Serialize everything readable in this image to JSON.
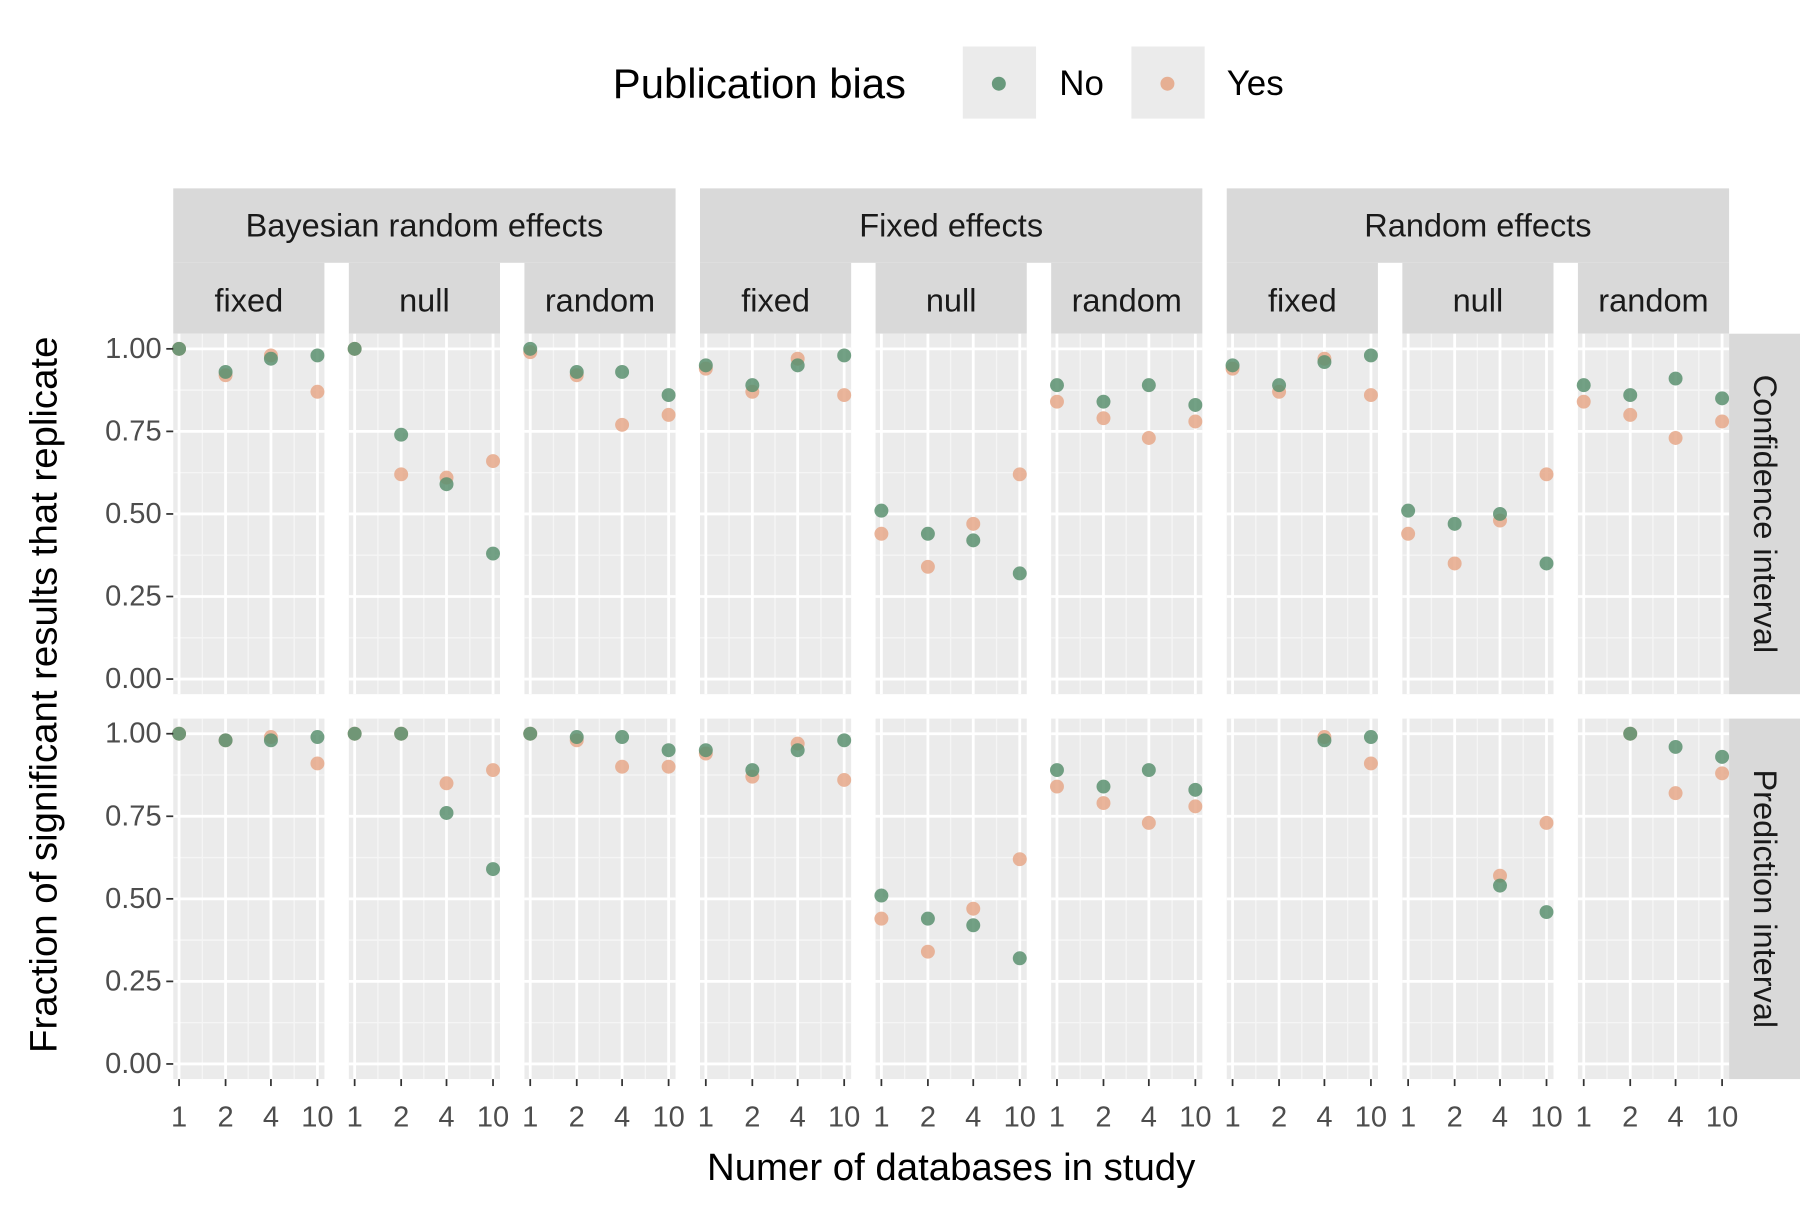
{
  "chart_data": {
    "type": "scatter",
    "xlabel": "Numer of databases in study",
    "ylabel": "Fraction of significant results that replicate",
    "x_categories": [
      "1",
      "2",
      "4",
      "10"
    ],
    "y_ticks": [
      "0.00",
      "0.25",
      "0.50",
      "0.75",
      "1.00"
    ],
    "ylim": [
      0,
      1
    ],
    "grid": true,
    "legend": {
      "title": "Publication bias",
      "placement": "top",
      "entries": [
        {
          "label": "No",
          "color": "#5a9070"
        },
        {
          "label": "Yes",
          "color": "#e6a88a"
        }
      ]
    },
    "column_groups": [
      "Bayesian random effects",
      "Fixed effects",
      "Random effects"
    ],
    "column_subgroups": [
      "fixed",
      "null",
      "random"
    ],
    "row_strips": [
      "Confidence interval",
      "Prediction interval"
    ],
    "panels": [
      {
        "row": 0,
        "group": 0,
        "sub": 0,
        "no": [
          1.0,
          0.93,
          0.97,
          0.98
        ],
        "yes": [
          1.0,
          0.92,
          0.98,
          0.87
        ]
      },
      {
        "row": 0,
        "group": 0,
        "sub": 1,
        "no": [
          1.0,
          0.74,
          0.59,
          0.38
        ],
        "yes": [
          1.0,
          0.62,
          0.61,
          0.66
        ]
      },
      {
        "row": 0,
        "group": 0,
        "sub": 2,
        "no": [
          1.0,
          0.93,
          0.93,
          0.86
        ],
        "yes": [
          0.99,
          0.92,
          0.77,
          0.8
        ]
      },
      {
        "row": 0,
        "group": 1,
        "sub": 0,
        "no": [
          0.95,
          0.89,
          0.95,
          0.98
        ],
        "yes": [
          0.94,
          0.87,
          0.97,
          0.86
        ]
      },
      {
        "row": 0,
        "group": 1,
        "sub": 1,
        "no": [
          0.51,
          0.44,
          0.42,
          0.32
        ],
        "yes": [
          0.44,
          0.34,
          0.47,
          0.62
        ]
      },
      {
        "row": 0,
        "group": 1,
        "sub": 2,
        "no": [
          0.89,
          0.84,
          0.89,
          0.83
        ],
        "yes": [
          0.84,
          0.79,
          0.73,
          0.78
        ]
      },
      {
        "row": 0,
        "group": 2,
        "sub": 0,
        "no": [
          0.95,
          0.89,
          0.96,
          0.98
        ],
        "yes": [
          0.94,
          0.87,
          0.97,
          0.86
        ]
      },
      {
        "row": 0,
        "group": 2,
        "sub": 1,
        "no": [
          0.51,
          0.47,
          0.5,
          0.35
        ],
        "yes": [
          0.44,
          0.35,
          0.48,
          0.62
        ]
      },
      {
        "row": 0,
        "group": 2,
        "sub": 2,
        "no": [
          0.89,
          0.86,
          0.91,
          0.85
        ],
        "yes": [
          0.84,
          0.8,
          0.73,
          0.78
        ]
      },
      {
        "row": 1,
        "group": 0,
        "sub": 0,
        "no": [
          1.0,
          0.98,
          0.98,
          0.99
        ],
        "yes": [
          1.0,
          0.98,
          0.99,
          0.91
        ]
      },
      {
        "row": 1,
        "group": 0,
        "sub": 1,
        "no": [
          1.0,
          1.0,
          0.76,
          0.59
        ],
        "yes": [
          1.0,
          1.0,
          0.85,
          0.89
        ]
      },
      {
        "row": 1,
        "group": 0,
        "sub": 2,
        "no": [
          1.0,
          0.99,
          0.99,
          0.95
        ],
        "yes": [
          1.0,
          0.98,
          0.9,
          0.9
        ]
      },
      {
        "row": 1,
        "group": 1,
        "sub": 0,
        "no": [
          0.95,
          0.89,
          0.95,
          0.98
        ],
        "yes": [
          0.94,
          0.87,
          0.97,
          0.86
        ]
      },
      {
        "row": 1,
        "group": 1,
        "sub": 1,
        "no": [
          0.51,
          0.44,
          0.42,
          0.32
        ],
        "yes": [
          0.44,
          0.34,
          0.47,
          0.62
        ]
      },
      {
        "row": 1,
        "group": 1,
        "sub": 2,
        "no": [
          0.89,
          0.84,
          0.89,
          0.83
        ],
        "yes": [
          0.84,
          0.79,
          0.73,
          0.78
        ]
      },
      {
        "row": 1,
        "group": 2,
        "sub": 0,
        "no": [
          null,
          null,
          0.98,
          0.99
        ],
        "yes": [
          null,
          null,
          0.99,
          0.91
        ]
      },
      {
        "row": 1,
        "group": 2,
        "sub": 1,
        "no": [
          null,
          null,
          0.54,
          0.46
        ],
        "yes": [
          null,
          null,
          0.57,
          0.73
        ]
      },
      {
        "row": 1,
        "group": 2,
        "sub": 2,
        "no": [
          null,
          1.0,
          0.96,
          0.93
        ],
        "yes": [
          null,
          1.0,
          0.82,
          0.88
        ]
      }
    ]
  }
}
